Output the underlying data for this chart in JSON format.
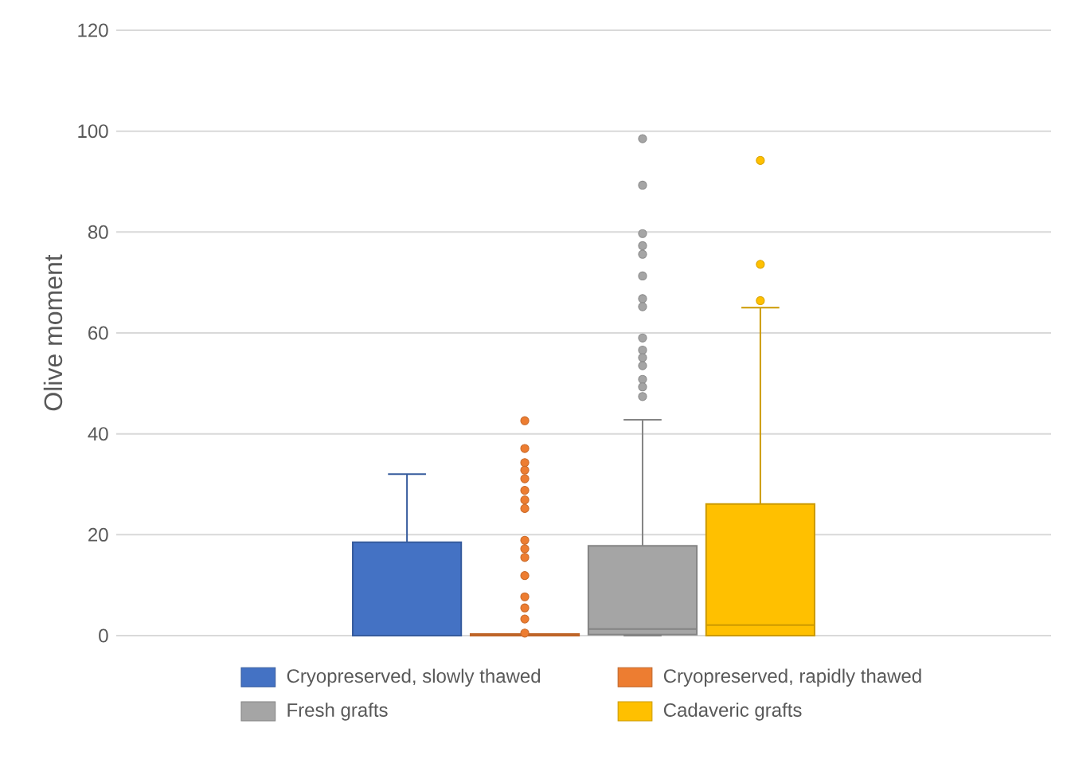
{
  "chart_data": {
    "type": "box",
    "ylabel": "Olive moment",
    "categories": [
      null
    ],
    "series": [
      {
        "name": "Cryopreserved, slowly thawed",
        "color": "#4472c4",
        "boxes": [
          {
            "q1": 0,
            "median": 0,
            "q3": 18.5,
            "high": 32
          }
        ]
      },
      {
        "name": "Cryopreserved, rapidly thawed",
        "color": "#ed7d31",
        "boxes": [
          {
            "q1": 0,
            "median": 0,
            "q3": 0.3,
            "high": 0.3,
            "outliers": [
              42.6,
              37.1,
              34.3,
              32.8,
              31.1,
              28.8,
              26.9,
              25.2,
              18.9,
              17.2,
              15.5,
              11.9,
              7.7,
              5.5,
              3.3,
              0.5
            ]
          }
        ]
      },
      {
        "name": "Fresh grafts",
        "color": "#a5a5a5",
        "boxes": [
          {
            "low": 0,
            "q1": 0.2,
            "median": 1.3,
            "q3": 17.8,
            "high": 42.8,
            "outliers": [
              98.5,
              89.3,
              79.7,
              77.3,
              75.6,
              71.3,
              66.8,
              65.2,
              59.0,
              56.6,
              55.1,
              53.5,
              50.8,
              49.3,
              47.4
            ]
          }
        ]
      },
      {
        "name": "Cadaveric grafts",
        "color": "#ffc000",
        "boxes": [
          {
            "q1": 0,
            "median": 2.1,
            "q3": 26.1,
            "high": 65,
            "outliers": [
              94.2,
              73.6,
              66.4
            ]
          }
        ]
      }
    ],
    "ylim": [
      0,
      120
    ],
    "yticks": [
      0,
      20,
      40,
      60,
      80,
      100,
      120
    ],
    "grid": "y",
    "legend": "bottom"
  }
}
